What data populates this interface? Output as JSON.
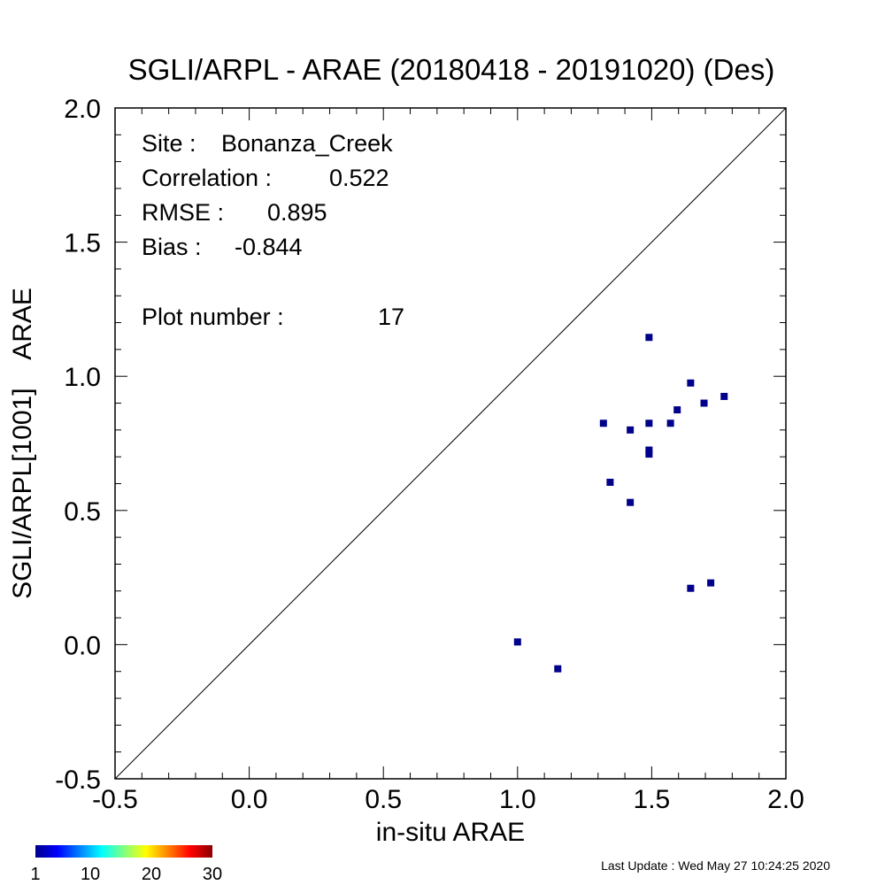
{
  "chart_data": {
    "type": "scatter",
    "title": "SGLI/ARPL - ARAE (20180418 - 20191020) (Des)",
    "xlabel": "in-situ ARAE",
    "ylabel": "SGLI/ARPL[1001]    ARAE",
    "xlim": [
      -0.5,
      2.0
    ],
    "ylim": [
      -0.5,
      2.0
    ],
    "x_ticks": [
      "-0.5",
      "0.0",
      "0.5",
      "1.0",
      "1.5",
      "2.0"
    ],
    "y_ticks": [
      "-0.5",
      "0.0",
      "0.5",
      "1.0",
      "1.5",
      "2.0"
    ],
    "one_to_one_line": true,
    "marker_color": "#00008b",
    "points": [
      {
        "x": 1.0,
        "y": 0.01
      },
      {
        "x": 1.15,
        "y": -0.09
      },
      {
        "x": 1.32,
        "y": 0.825
      },
      {
        "x": 1.345,
        "y": 0.605
      },
      {
        "x": 1.42,
        "y": 0.8
      },
      {
        "x": 1.42,
        "y": 0.53
      },
      {
        "x": 1.49,
        "y": 1.145
      },
      {
        "x": 1.49,
        "y": 0.825
      },
      {
        "x": 1.49,
        "y": 0.725
      },
      {
        "x": 1.49,
        "y": 0.71
      },
      {
        "x": 1.57,
        "y": 0.825
      },
      {
        "x": 1.595,
        "y": 0.875
      },
      {
        "x": 1.645,
        "y": 0.975
      },
      {
        "x": 1.695,
        "y": 0.9
      },
      {
        "x": 1.77,
        "y": 0.925
      },
      {
        "x": 1.645,
        "y": 0.21
      },
      {
        "x": 1.72,
        "y": 0.23
      }
    ],
    "stats": [
      {
        "label": "Site :",
        "value": "Bonanza_Creek"
      },
      {
        "label": "Correlation :",
        "value": "0.522"
      },
      {
        "label": "RMSE :",
        "value": "0.895"
      },
      {
        "label": "Bias :",
        "value": "-0.844"
      },
      {
        "label": "Plot number :",
        "value": "17"
      }
    ],
    "colorbar": {
      "ticks": [
        "1",
        "10",
        "20",
        "30"
      ],
      "colors": [
        "#00008b",
        "#0000ff",
        "#0080ff",
        "#00ffff",
        "#80ff80",
        "#ffff00",
        "#ff8000",
        "#ff0000",
        "#8b0000"
      ]
    }
  },
  "footer": {
    "last_update": "Last Update : Wed May 27 10:24:25 2020"
  }
}
